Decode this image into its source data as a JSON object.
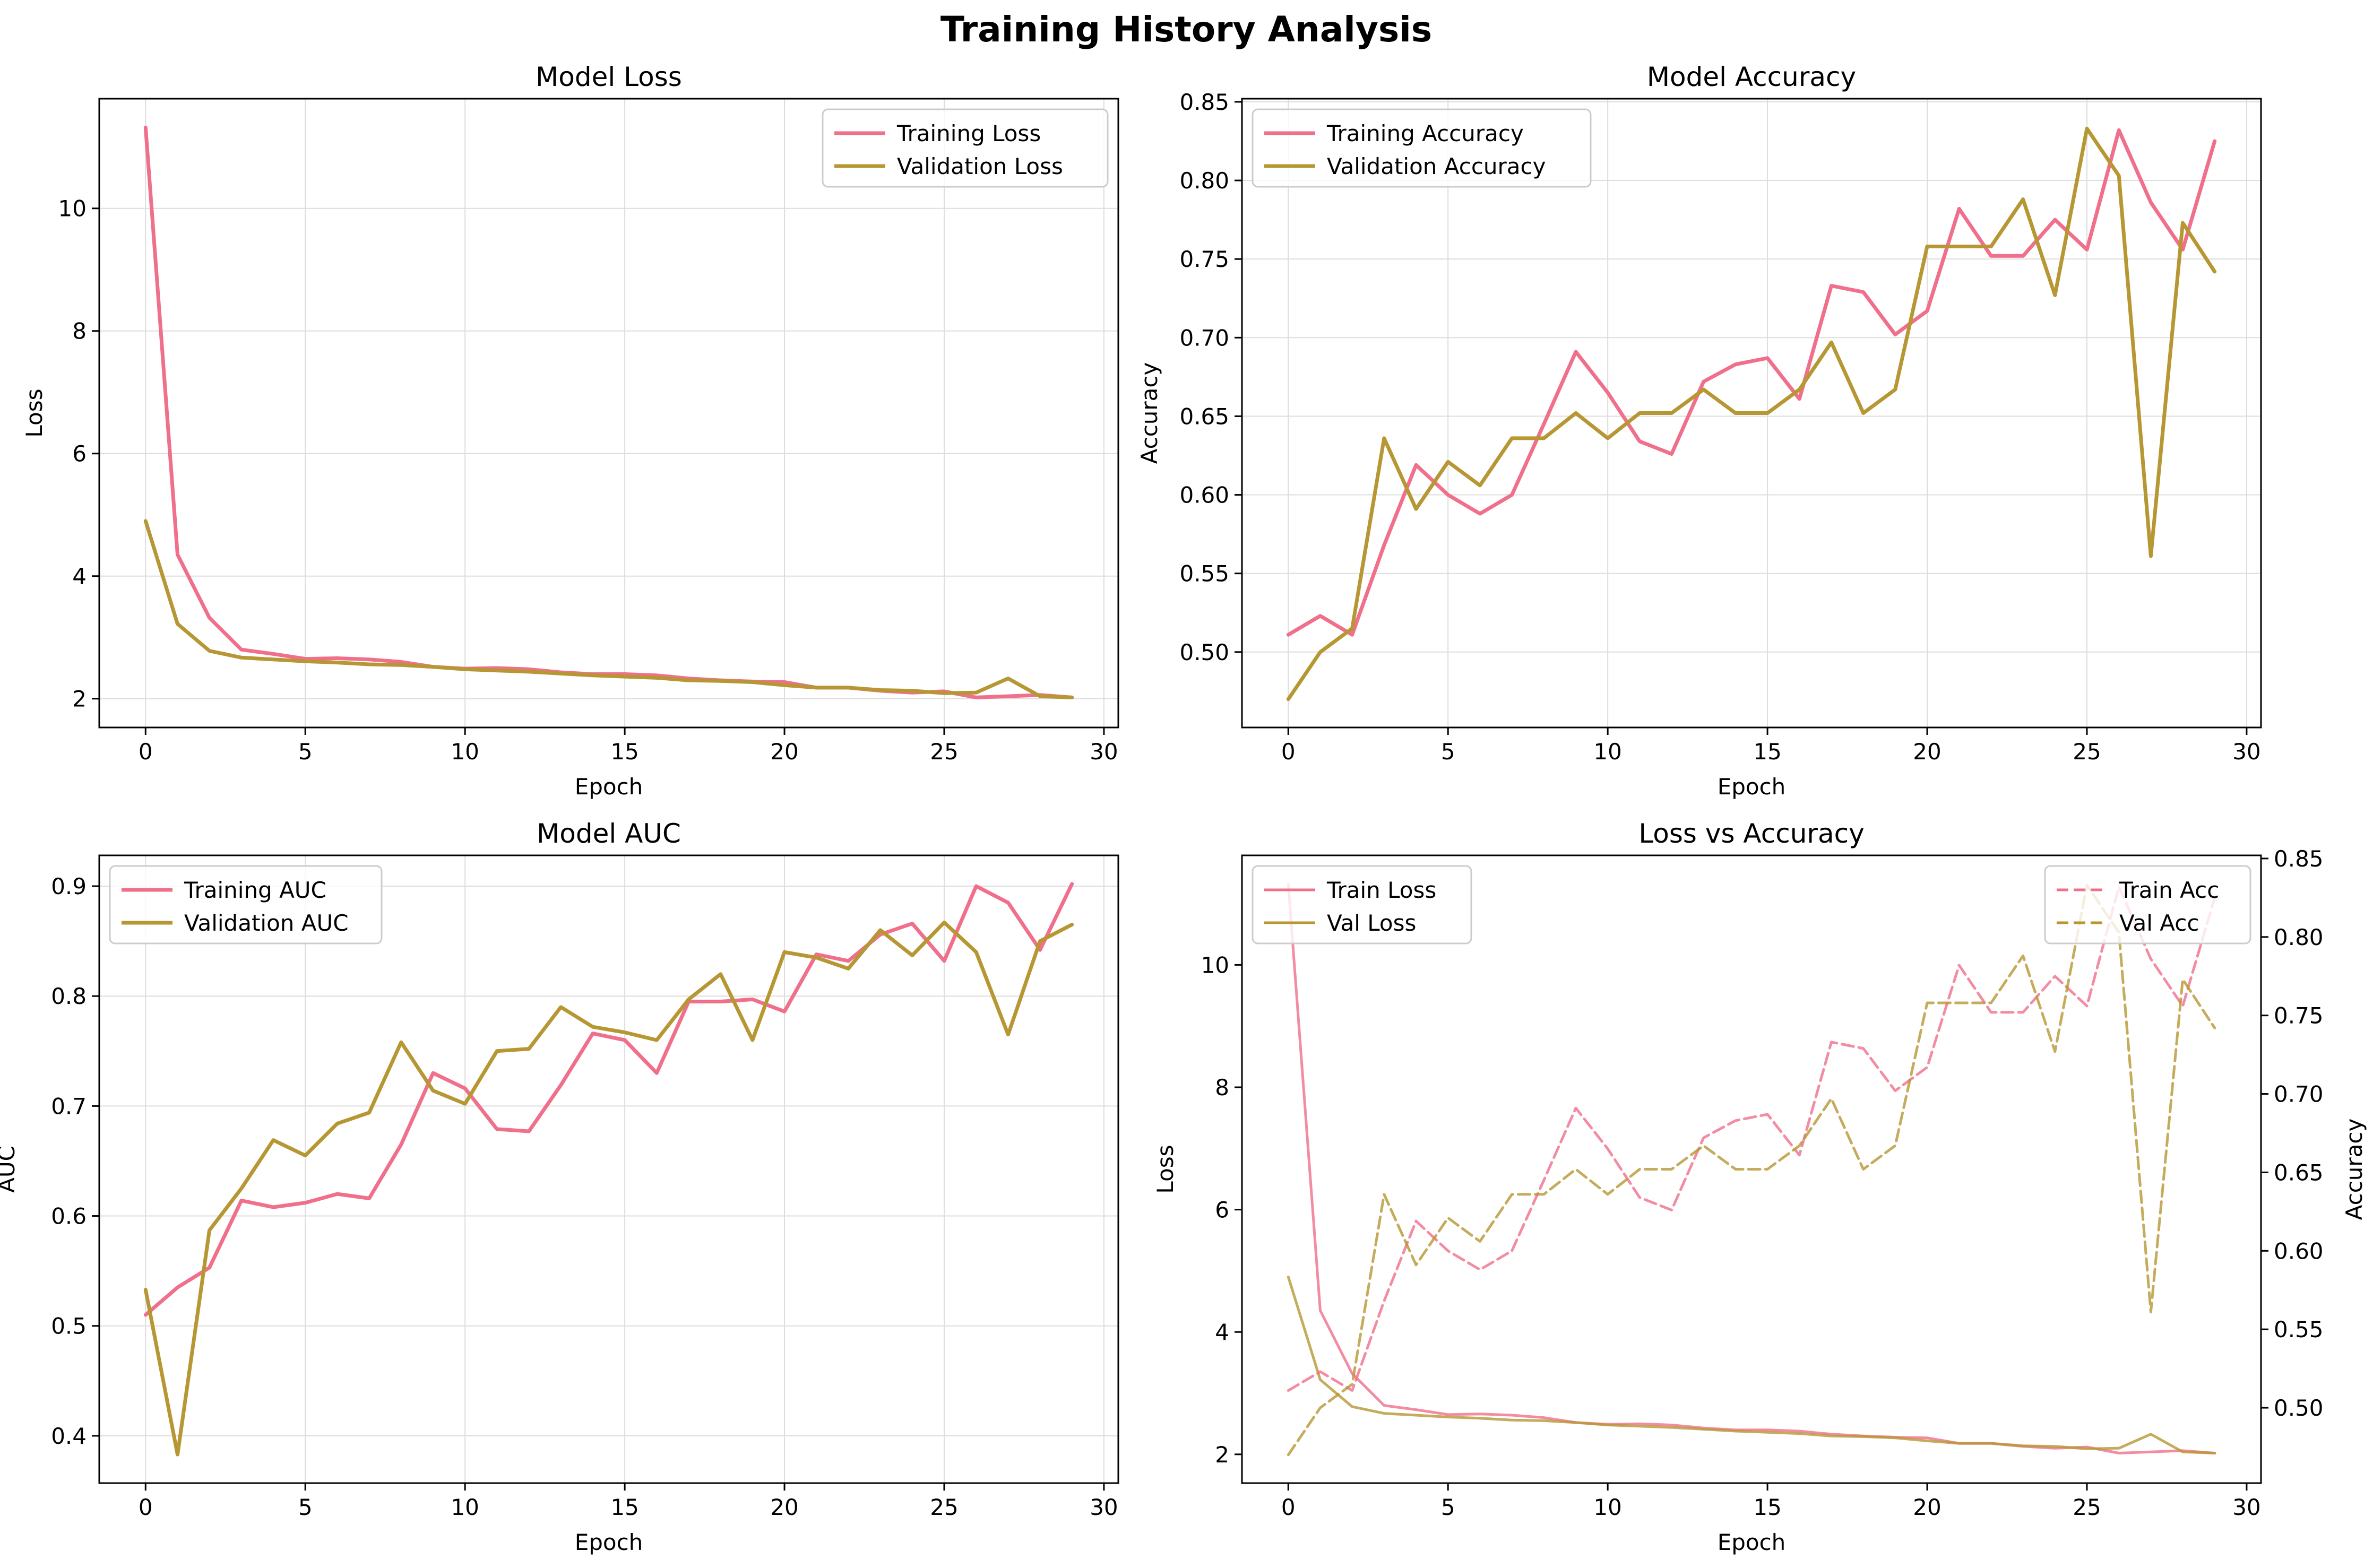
{
  "figure": {
    "title": "Training History Analysis"
  },
  "colors": {
    "train": "#f06f8b",
    "val": "#b69733",
    "grid": "#dddddd",
    "loss_label": "#0000ff",
    "acc_label": "#ff0000"
  },
  "chart_data": [
    {
      "type": "line",
      "title": "Model Loss",
      "xlabel": "Epoch",
      "ylabel": "Loss",
      "xlim": [
        -1.45,
        30.45
      ],
      "ylim": [
        1.53,
        11.79
      ],
      "xticks": [
        0,
        5,
        10,
        15,
        20,
        25,
        30
      ],
      "yticks": [
        2,
        4,
        6,
        8,
        10
      ],
      "legend": "upper-right",
      "grid": true,
      "x": [
        0,
        1,
        2,
        3,
        4,
        5,
        6,
        7,
        8,
        9,
        10,
        11,
        12,
        13,
        14,
        15,
        16,
        17,
        18,
        19,
        20,
        21,
        22,
        23,
        24,
        25,
        26,
        27,
        28,
        29
      ],
      "series": [
        {
          "name": "Training Loss",
          "color_key": "train",
          "values": [
            11.32,
            4.35,
            3.32,
            2.8,
            2.73,
            2.65,
            2.66,
            2.64,
            2.6,
            2.52,
            2.49,
            2.5,
            2.48,
            2.43,
            2.4,
            2.4,
            2.38,
            2.33,
            2.3,
            2.28,
            2.27,
            2.18,
            2.18,
            2.13,
            2.1,
            2.12,
            2.02,
            2.04,
            2.06,
            2.02
          ]
        },
        {
          "name": "Validation Loss",
          "color_key": "val",
          "values": [
            4.9,
            3.22,
            2.78,
            2.67,
            2.64,
            2.61,
            2.59,
            2.56,
            2.55,
            2.52,
            2.48,
            2.46,
            2.44,
            2.41,
            2.38,
            2.36,
            2.34,
            2.3,
            2.29,
            2.27,
            2.22,
            2.18,
            2.18,
            2.14,
            2.13,
            2.09,
            2.1,
            2.33,
            2.04,
            2.02
          ]
        }
      ]
    },
    {
      "type": "line",
      "title": "Model Accuracy",
      "xlabel": "Epoch",
      "ylabel": "Accuracy",
      "xlim": [
        -1.45,
        30.45
      ],
      "ylim": [
        0.452,
        0.852
      ],
      "xticks": [
        0,
        5,
        10,
        15,
        20,
        25,
        30
      ],
      "yticks": [
        0.5,
        0.55,
        0.6,
        0.65,
        0.7,
        0.75,
        0.8,
        0.85
      ],
      "ytick_labels": [
        "0.50",
        "0.55",
        "0.60",
        "0.65",
        "0.70",
        "0.75",
        "0.80",
        "0.85"
      ],
      "legend": "upper-left",
      "grid": true,
      "x": [
        0,
        1,
        2,
        3,
        4,
        5,
        6,
        7,
        8,
        9,
        10,
        11,
        12,
        13,
        14,
        15,
        16,
        17,
        18,
        19,
        20,
        21,
        22,
        23,
        24,
        25,
        26,
        27,
        28,
        29
      ],
      "series": [
        {
          "name": "Training Accuracy",
          "color_key": "train",
          "values": [
            0.511,
            0.523,
            0.511,
            0.568,
            0.619,
            0.6,
            0.588,
            0.6,
            0.645,
            0.691,
            0.665,
            0.634,
            0.626,
            0.672,
            0.683,
            0.687,
            0.661,
            0.733,
            0.729,
            0.702,
            0.717,
            0.782,
            0.752,
            0.752,
            0.775,
            0.756,
            0.832,
            0.786,
            0.756,
            0.825
          ]
        },
        {
          "name": "Validation Accuracy",
          "color_key": "val",
          "values": [
            0.47,
            0.5,
            0.515,
            0.636,
            0.591,
            0.621,
            0.606,
            0.636,
            0.636,
            0.652,
            0.636,
            0.652,
            0.652,
            0.667,
            0.652,
            0.652,
            0.667,
            0.697,
            0.652,
            0.667,
            0.758,
            0.758,
            0.758,
            0.788,
            0.727,
            0.833,
            0.803,
            0.561,
            0.773,
            0.742
          ]
        }
      ]
    },
    {
      "type": "line",
      "title": "Model AUC",
      "xlabel": "Epoch",
      "ylabel": "AUC",
      "xlim": [
        -1.45,
        30.45
      ],
      "ylim": [
        0.357,
        0.928
      ],
      "xticks": [
        0,
        5,
        10,
        15,
        20,
        25,
        30
      ],
      "yticks": [
        0.4,
        0.5,
        0.6,
        0.7,
        0.8,
        0.9
      ],
      "ytick_labels": [
        "0.4",
        "0.5",
        "0.6",
        "0.7",
        "0.8",
        "0.9"
      ],
      "legend": "upper-left",
      "grid": true,
      "x": [
        0,
        1,
        2,
        3,
        4,
        5,
        6,
        7,
        8,
        9,
        10,
        11,
        12,
        13,
        14,
        15,
        16,
        17,
        18,
        19,
        20,
        21,
        22,
        23,
        24,
        25,
        26,
        27,
        28,
        29
      ],
      "series": [
        {
          "name": "Training AUC",
          "color_key": "train",
          "values": [
            0.51,
            0.535,
            0.553,
            0.614,
            0.608,
            0.612,
            0.62,
            0.616,
            0.665,
            0.73,
            0.716,
            0.679,
            0.677,
            0.719,
            0.766,
            0.76,
            0.73,
            0.795,
            0.795,
            0.797,
            0.786,
            0.838,
            0.832,
            0.856,
            0.866,
            0.832,
            0.9,
            0.885,
            0.842,
            0.902
          ]
        },
        {
          "name": "Validation AUC",
          "color_key": "val",
          "values": [
            0.533,
            0.383,
            0.587,
            0.625,
            0.669,
            0.655,
            0.684,
            0.694,
            0.758,
            0.714,
            0.702,
            0.75,
            0.752,
            0.79,
            0.772,
            0.767,
            0.76,
            0.797,
            0.82,
            0.76,
            0.84,
            0.835,
            0.825,
            0.86,
            0.837,
            0.867,
            0.84,
            0.765,
            0.85,
            0.865
          ]
        }
      ]
    },
    {
      "type": "line",
      "title": "Loss vs Accuracy",
      "xlabel": "Epoch",
      "ylabel": "Loss",
      "y2label": "Accuracy",
      "xlim": [
        -1.45,
        30.45
      ],
      "ylim": [
        1.53,
        11.79
      ],
      "y2lim": [
        0.452,
        0.852
      ],
      "xticks": [
        0,
        5,
        10,
        15,
        20,
        25,
        30
      ],
      "yticks": [
        2,
        4,
        6,
        8,
        10
      ],
      "y2ticks": [
        0.5,
        0.55,
        0.6,
        0.65,
        0.7,
        0.75,
        0.8,
        0.85
      ],
      "y2tick_labels": [
        "0.50",
        "0.55",
        "0.60",
        "0.65",
        "0.70",
        "0.75",
        "0.80",
        "0.85"
      ],
      "legend": "upper-left (loss), upper-right (accuracy)",
      "grid": false,
      "x": [
        0,
        1,
        2,
        3,
        4,
        5,
        6,
        7,
        8,
        9,
        10,
        11,
        12,
        13,
        14,
        15,
        16,
        17,
        18,
        19,
        20,
        21,
        22,
        23,
        24,
        25,
        26,
        27,
        28,
        29
      ],
      "series": [
        {
          "name": "Train Loss",
          "axis": "left",
          "style": "solid",
          "color_key": "train",
          "values": [
            11.32,
            4.35,
            3.32,
            2.8,
            2.73,
            2.65,
            2.66,
            2.64,
            2.6,
            2.52,
            2.49,
            2.5,
            2.48,
            2.43,
            2.4,
            2.4,
            2.38,
            2.33,
            2.3,
            2.28,
            2.27,
            2.18,
            2.18,
            2.13,
            2.1,
            2.12,
            2.02,
            2.04,
            2.06,
            2.02
          ]
        },
        {
          "name": "Val Loss",
          "axis": "left",
          "style": "solid",
          "color_key": "val",
          "values": [
            4.9,
            3.22,
            2.78,
            2.67,
            2.64,
            2.61,
            2.59,
            2.56,
            2.55,
            2.52,
            2.48,
            2.46,
            2.44,
            2.41,
            2.38,
            2.36,
            2.34,
            2.3,
            2.29,
            2.27,
            2.22,
            2.18,
            2.18,
            2.14,
            2.13,
            2.09,
            2.1,
            2.33,
            2.04,
            2.02
          ]
        },
        {
          "name": "Train Acc",
          "axis": "right",
          "style": "dashed",
          "color_key": "train",
          "values": [
            0.511,
            0.523,
            0.511,
            0.568,
            0.619,
            0.6,
            0.588,
            0.6,
            0.645,
            0.691,
            0.665,
            0.634,
            0.626,
            0.672,
            0.683,
            0.687,
            0.661,
            0.733,
            0.729,
            0.702,
            0.717,
            0.782,
            0.752,
            0.752,
            0.775,
            0.756,
            0.832,
            0.786,
            0.756,
            0.825
          ]
        },
        {
          "name": "Val Acc",
          "axis": "right",
          "style": "dashed",
          "color_key": "val",
          "values": [
            0.47,
            0.5,
            0.515,
            0.636,
            0.591,
            0.621,
            0.606,
            0.636,
            0.636,
            0.652,
            0.636,
            0.652,
            0.652,
            0.667,
            0.652,
            0.652,
            0.667,
            0.697,
            0.652,
            0.667,
            0.758,
            0.758,
            0.758,
            0.788,
            0.727,
            0.833,
            0.803,
            0.561,
            0.773,
            0.742
          ]
        }
      ]
    }
  ]
}
